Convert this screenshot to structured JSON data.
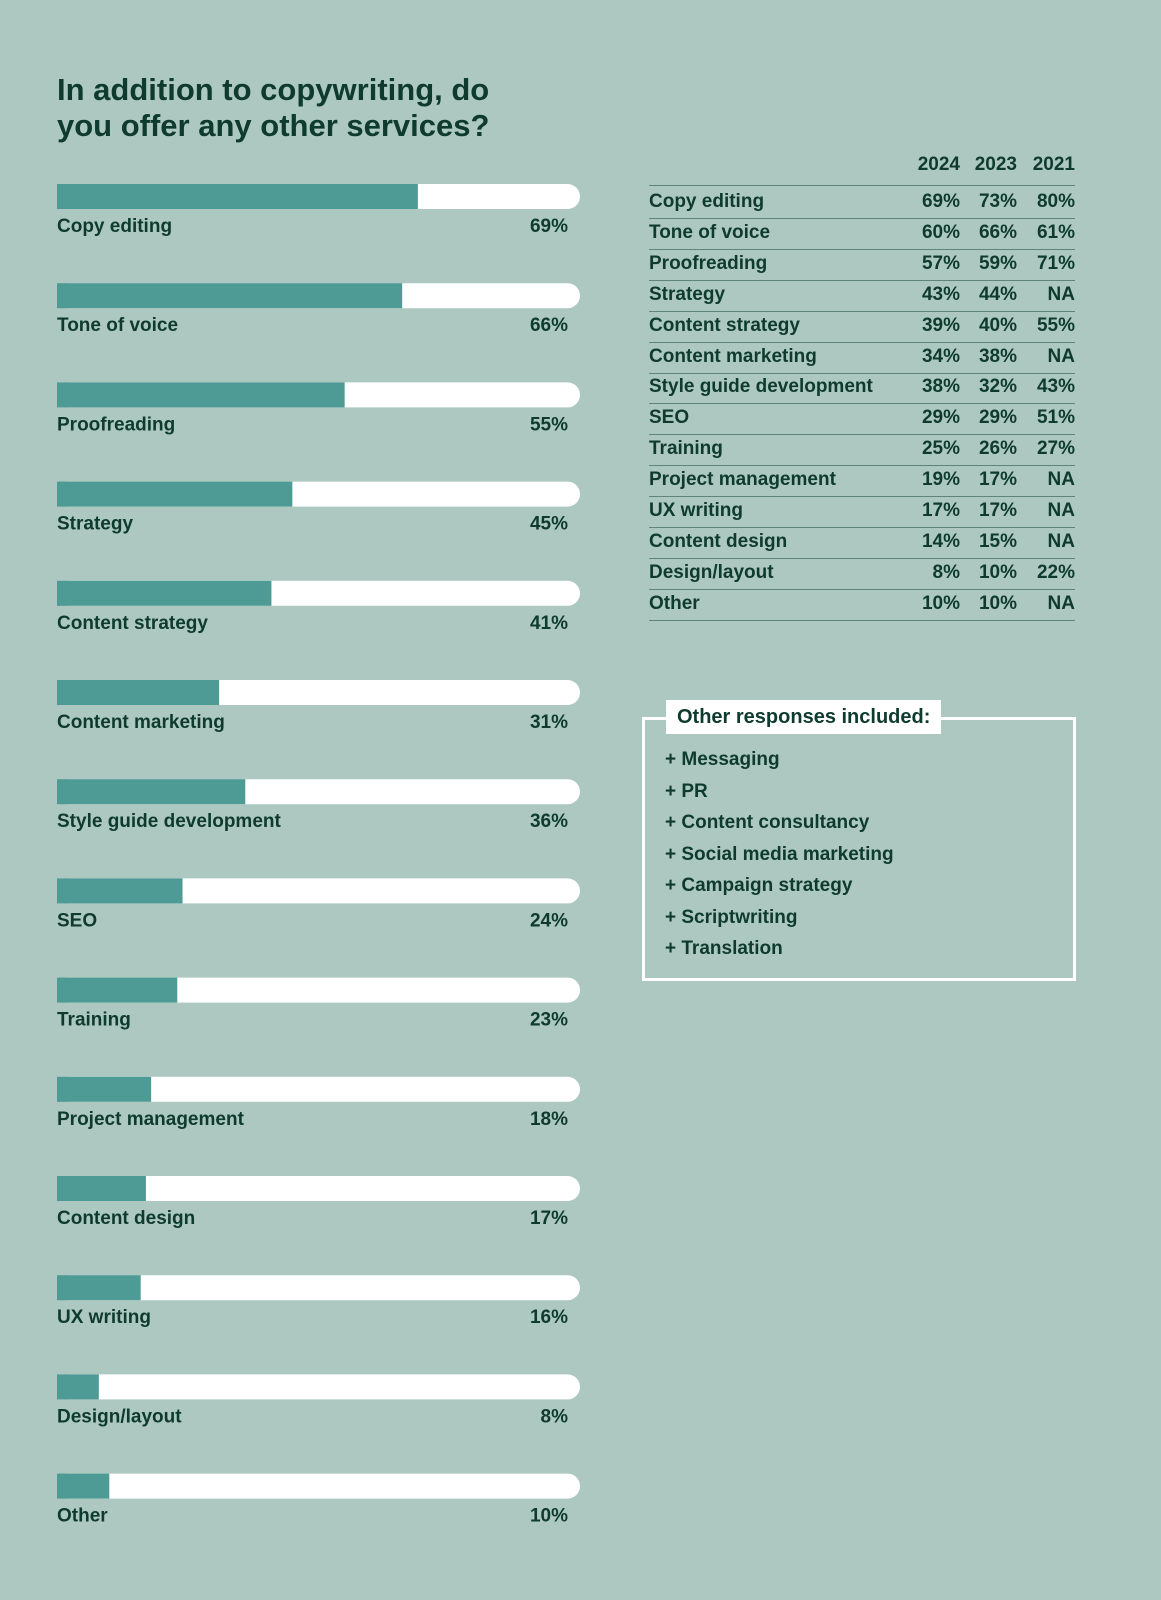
{
  "chart_data": {
    "type": "bar",
    "orientation": "horizontal",
    "title": "In addition to copywriting, do you offer any other services?",
    "categories": [
      "Copy editing",
      "Tone of voice",
      "Proofreading",
      "Strategy",
      "Content strategy",
      "Content marketing",
      "Style guide development",
      "SEO",
      "Training",
      "Project management",
      "Content design",
      "UX writing",
      "Design/layout",
      "Other"
    ],
    "values": [
      69,
      66,
      55,
      45,
      41,
      31,
      36,
      24,
      23,
      18,
      17,
      16,
      8,
      10
    ],
    "value_labels": [
      "69%",
      "66%",
      "55%",
      "45%",
      "41%",
      "31%",
      "36%",
      "24%",
      "23%",
      "18%",
      "17%",
      "16%",
      "8%",
      "10%"
    ],
    "xlim": [
      0,
      100
    ],
    "color": "#4e9a94",
    "track_color": "#ffffff"
  },
  "table": {
    "columns": [
      "2024",
      "2023",
      "2021"
    ],
    "rows": [
      [
        "Copy editing",
        "69%",
        "73%",
        "80%"
      ],
      [
        "Tone of voice",
        "60%",
        "66%",
        "61%"
      ],
      [
        "Proofreading",
        "57%",
        "59%",
        "71%"
      ],
      [
        "Strategy",
        "43%",
        "44%",
        "NA"
      ],
      [
        "Content strategy",
        "39%",
        "40%",
        "55%"
      ],
      [
        "Content marketing",
        "34%",
        "38%",
        "NA"
      ],
      [
        "Style guide development",
        "38%",
        "32%",
        "43%"
      ],
      [
        "SEO",
        "29%",
        "29%",
        "51%"
      ],
      [
        "Training",
        "25%",
        "26%",
        "27%"
      ],
      [
        "Project management",
        "19%",
        "17%",
        "NA"
      ],
      [
        "UX writing",
        "17%",
        "17%",
        "NA"
      ],
      [
        "Content design",
        "14%",
        "15%",
        "NA"
      ],
      [
        "Design/layout",
        "8%",
        "10%",
        "22%"
      ],
      [
        "Other",
        "10%",
        "10%",
        "NA"
      ]
    ]
  },
  "callout": {
    "title": "Other responses included:",
    "items": [
      "+ Messaging",
      "+ PR",
      "+ Content consultancy",
      "+ Social media marketing",
      "+ Campaign strategy",
      "+ Scriptwriting",
      "+ Translation"
    ]
  }
}
